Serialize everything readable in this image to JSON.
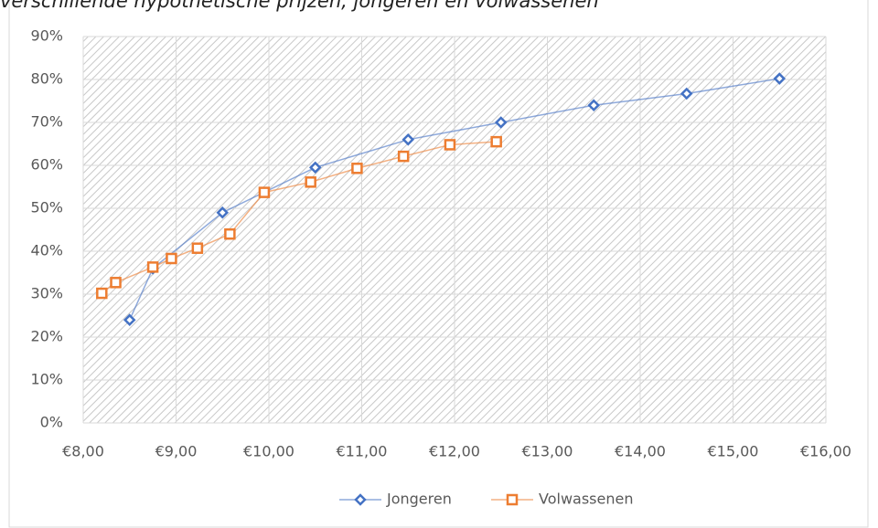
{
  "chart_data": {
    "type": "line",
    "title": "verschillende hypothetische prijzen, jongeren en volwassenen",
    "series": [
      {
        "name": "Jongeren",
        "color": "#4472c4",
        "marker": "diamond",
        "x": [
          8.5,
          8.75,
          9.5,
          10.5,
          11.5,
          12.5,
          13.5,
          14.5,
          15.5
        ],
        "values": [
          24,
          36,
          49,
          59.5,
          66,
          70,
          74,
          76.7,
          80.2
        ]
      },
      {
        "name": "Volwassenen",
        "color": "#ed7d31",
        "marker": "square",
        "x": [
          8.2,
          8.35,
          8.75,
          8.95,
          9.23,
          9.58,
          9.95,
          10.45,
          10.95,
          11.45,
          11.95,
          12.45
        ],
        "values": [
          30.2,
          32.7,
          36.3,
          38.3,
          40.7,
          44,
          53.7,
          56.1,
          59.3,
          62.1,
          64.8,
          65.5
        ]
      }
    ],
    "xlim": [
      8,
      16
    ],
    "xticks": [
      {
        "value": 8,
        "label": "€8,00"
      },
      {
        "value": 9,
        "label": "€9,00"
      },
      {
        "value": 10,
        "label": "€10,00"
      },
      {
        "value": 11,
        "label": "€11,00"
      },
      {
        "value": 12,
        "label": "€12,00"
      },
      {
        "value": 13,
        "label": "€13,00"
      },
      {
        "value": 14,
        "label": "€14,00"
      },
      {
        "value": 15,
        "label": "€15,00"
      },
      {
        "value": 16,
        "label": "€16,00"
      }
    ],
    "ylim": [
      0,
      90
    ],
    "yticks": [
      {
        "value": 0,
        "label": "0%"
      },
      {
        "value": 10,
        "label": "10%"
      },
      {
        "value": 20,
        "label": "20%"
      },
      {
        "value": 30,
        "label": "30%"
      },
      {
        "value": 40,
        "label": "40%"
      },
      {
        "value": 50,
        "label": "50%"
      },
      {
        "value": 60,
        "label": "60%"
      },
      {
        "value": 70,
        "label": "70%"
      },
      {
        "value": 80,
        "label": "80%"
      },
      {
        "value": 90,
        "label": "90%"
      }
    ],
    "grid": true,
    "legend": "bottom"
  }
}
